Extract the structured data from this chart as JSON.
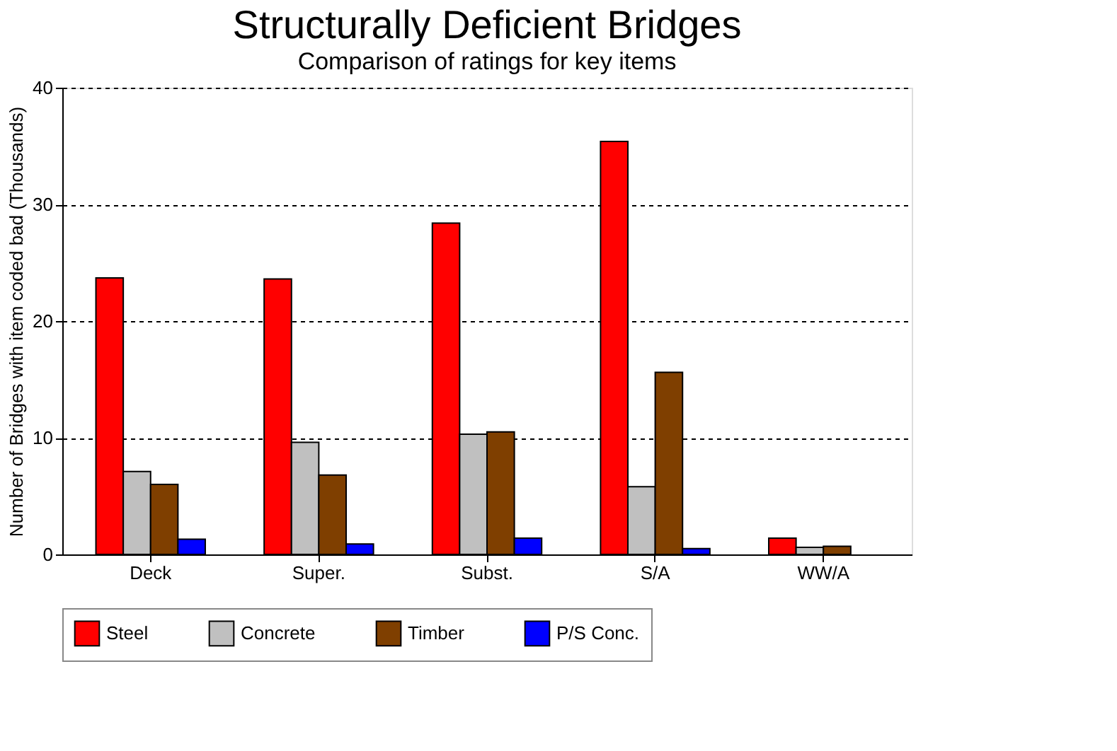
{
  "chart_data": {
    "type": "bar",
    "title": "Structurally Deficient Bridges",
    "subtitle": "Comparison of ratings for key items",
    "ylabel": "Number of Bridges with item coded bad (Thousands)",
    "categories": [
      "Deck",
      "Super.",
      "Subst.",
      "S/A",
      "WW/A"
    ],
    "series": [
      {
        "name": "Steel",
        "color": "#ff0000",
        "values": [
          23.7,
          23.6,
          28.4,
          35.4,
          1.4
        ]
      },
      {
        "name": "Concrete",
        "color": "#c0c0c0",
        "values": [
          7.1,
          9.6,
          10.3,
          5.8,
          0.6
        ]
      },
      {
        "name": "Timber",
        "color": "#7f3f00",
        "values": [
          6.0,
          6.8,
          10.5,
          15.6,
          0.7
        ]
      },
      {
        "name": "P/S Conc.",
        "color": "#0000ff",
        "values": [
          1.3,
          0.9,
          1.4,
          0.5,
          null
        ]
      }
    ],
    "ylim": [
      0,
      40
    ],
    "yticks": [
      0,
      10,
      20,
      30,
      40
    ],
    "grid": "y",
    "legend": "bottom"
  }
}
